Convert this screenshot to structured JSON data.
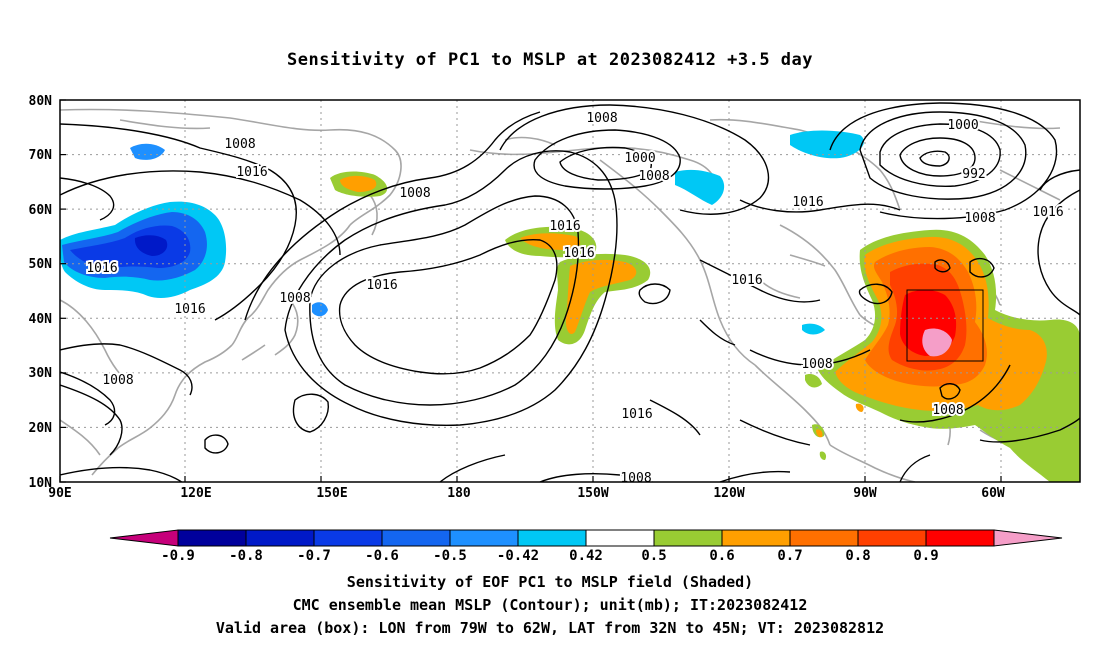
{
  "title": "Sensitivity of PC1 to MSLP at 2023082412 +3.5 day",
  "axes": {
    "lat_labels": [
      "80N",
      "70N",
      "60N",
      "50N",
      "40N",
      "30N",
      "20N",
      "10N"
    ],
    "lon_labels": [
      "90E",
      "120E",
      "150E",
      "180",
      "150W",
      "120W",
      "90W",
      "60W"
    ]
  },
  "contour_labels": [
    "1008",
    "1016",
    "1016",
    "1008",
    "1016",
    "1008",
    "1000",
    "1008",
    "1008",
    "1016",
    "1016",
    "1016",
    "1016",
    "1016",
    "1000",
    "992",
    "1008",
    "1016",
    "1008",
    "1008",
    "1008",
    "1016",
    "1008"
  ],
  "colorbar": {
    "tick_labels": [
      "-0.9",
      "-0.8",
      "-0.7",
      "-0.6",
      "-0.5",
      "-0.42",
      "0.42",
      "0.5",
      "0.6",
      "0.7",
      "0.8",
      "0.9"
    ],
    "colors": [
      "#c6007a",
      "#00009c",
      "#0019c8",
      "#0a3ae6",
      "#1466f0",
      "#1e90ff",
      "#00c8f5",
      "#ffffff",
      "#99cc33",
      "#ff9f00",
      "#ff7000",
      "#ff4000",
      "#ff0000",
      "#f59ec8"
    ]
  },
  "captions": {
    "line1": "Sensitivity of EOF PC1 to MSLP field (Shaded)",
    "line2": "CMC ensemble mean MSLP (Contour); unit(mb); IT:2023082412",
    "line3": "Valid area (box): LON from 79W to 62W, LAT from 32N to 45N; VT: 2023082812"
  },
  "valid_box": {
    "lon_min": -79,
    "lon_max": -62,
    "lat_min": 32,
    "lat_max": 45
  }
}
